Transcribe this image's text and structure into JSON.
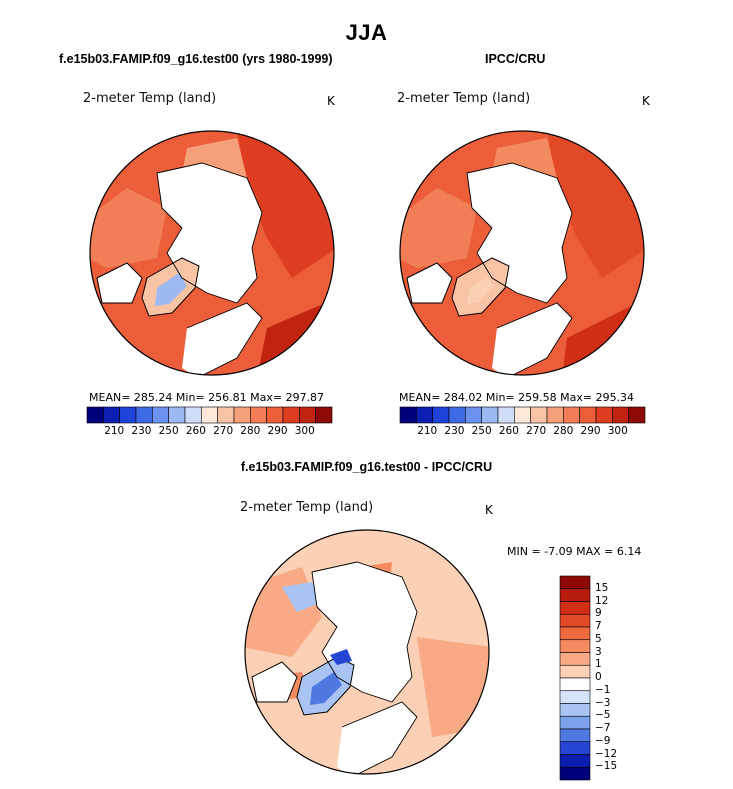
{
  "page": {
    "title": "JJA"
  },
  "panels": [
    {
      "title": "f.e15b03.FAMIP.f09_g16.test00 (yrs 1980-1999)",
      "variable": "2-meter Temp (land)",
      "units": "K",
      "stats_text": "MEAN= 285.24  Min= 256.81  Max= 297.87"
    },
    {
      "title": "IPCC/CRU",
      "variable": "2-meter Temp (land)",
      "units": "K",
      "stats_text": "MEAN= 284.02  Min= 259.58  Max= 295.34"
    },
    {
      "title": "f.e15b03.FAMIP.f09_g16.test00 - IPCC/CRU",
      "variable": "2-meter Temp (land)",
      "units": "K",
      "stats_text": "MIN =   -7.09 MAX =    6.14"
    }
  ],
  "chart_data": [
    {
      "type": "heatmap",
      "projection": "north polar stereographic",
      "title": "f.e15b03.FAMIP.f09_g16.test00 (yrs 1980-1999)",
      "variable": "2-meter Temp (land)",
      "units": "K",
      "mean": 285.24,
      "min": 256.81,
      "max": 297.87,
      "colorbar_tick_labels": [
        "210",
        "230",
        "250",
        "260",
        "270",
        "280",
        "290",
        "300"
      ],
      "colorbar_colors": [
        "#00007a",
        "#0d1fb2",
        "#1f43d8",
        "#3f6ae6",
        "#6a92ee",
        "#9cb9f3",
        "#cfddf8",
        "#fde8da",
        "#f9c3a6",
        "#f5a07a",
        "#f17e57",
        "#ec5d39",
        "#dd3d20",
        "#c0230f",
        "#8d0a06"
      ]
    },
    {
      "type": "heatmap",
      "projection": "north polar stereographic",
      "title": "IPCC/CRU",
      "variable": "2-meter Temp (land)",
      "units": "K",
      "mean": 284.02,
      "min": 259.58,
      "max": 295.34,
      "colorbar_tick_labels": [
        "210",
        "230",
        "250",
        "260",
        "270",
        "280",
        "290",
        "300"
      ],
      "colorbar_colors": [
        "#00007a",
        "#0d1fb2",
        "#1f43d8",
        "#3f6ae6",
        "#6a92ee",
        "#9cb9f3",
        "#cfddf8",
        "#fde8da",
        "#f9c3a6",
        "#f5a07a",
        "#f17e57",
        "#ec5d39",
        "#dd3d20",
        "#c0230f",
        "#8d0a06"
      ]
    },
    {
      "type": "heatmap",
      "projection": "north polar stereographic",
      "title": "f.e15b03.FAMIP.f09_g16.test00 - IPCC/CRU",
      "variable": "2-meter Temp (land)",
      "units": "K",
      "min": -7.09,
      "max": 6.14,
      "colorbar_tick_labels": [
        "15",
        "12",
        "9",
        "7",
        "5",
        "3",
        "1",
        "0",
        "-1",
        "-3",
        "-5",
        "-7",
        "-9",
        "-12",
        "-15"
      ],
      "colorbar_colors": [
        "#8d0a06",
        "#b71b0c",
        "#d12e16",
        "#e24a27",
        "#ee6a40",
        "#f48a60",
        "#f8aa86",
        "#fbd0b4",
        "#ffffff",
        "#d5e3fa",
        "#a9c4f2",
        "#7da2ea",
        "#4f78e0",
        "#2446d2",
        "#0a1eb0",
        "#00007a"
      ]
    }
  ]
}
